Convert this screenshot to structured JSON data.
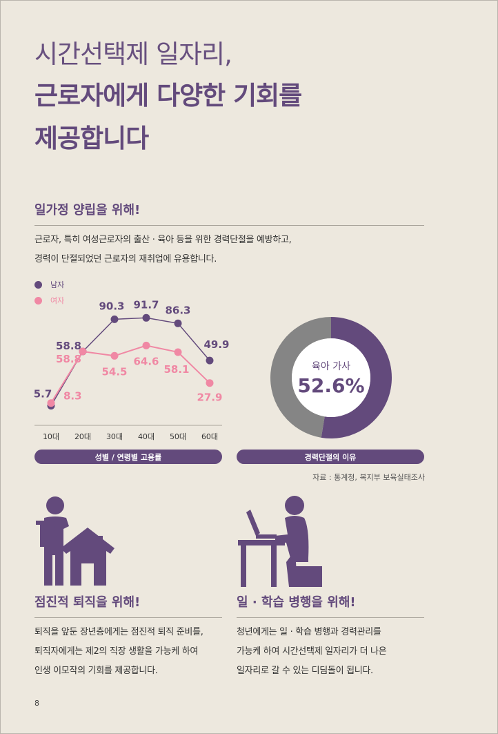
{
  "heading": {
    "line1": "시간선택제 일자리,",
    "line2": "근로자에게 다양한 기회를",
    "line3": "제공합니다"
  },
  "section1": {
    "title": "일가정 양립을 위해!",
    "body_line1": "근로자, 특히 여성근로자의 출산 · 육아 등을 위한 경력단절을 예방하고,",
    "body_line2": "경력이 단절되었던 근로자의 재취업에 유용합니다."
  },
  "chart_data": [
    {
      "type": "line",
      "categories": [
        "10대",
        "20대",
        "30대",
        "40대",
        "50대",
        "60대"
      ],
      "series": [
        {
          "name": "남자",
          "color": "#634a7c",
          "values": [
            5.7,
            58.8,
            90.3,
            91.7,
            86.3,
            49.9
          ]
        },
        {
          "name": "여자",
          "color": "#f088a4",
          "values": [
            8.3,
            58.8,
            54.5,
            64.6,
            58.1,
            27.9
          ]
        }
      ],
      "caption": "성별 / 연령별 고용률",
      "legend_position": "top-left",
      "grid": false
    },
    {
      "type": "pie",
      "style": "donut",
      "center_label": "육아 가사",
      "center_value": "52.6%",
      "slices": [
        {
          "label": "육아 가사",
          "value": 52.6,
          "color": "#634a7c"
        },
        {
          "label": "",
          "value": 47.4,
          "color": "#858585"
        }
      ],
      "caption": "경력단절의 이유"
    }
  ],
  "source": "자료 : 통계청, 복지부 보육실태조사",
  "section2": {
    "title": "점진적 퇴직을 위해!",
    "icon": "person-house-icon",
    "body_line1": "퇴직을 앞둔 장년층에게는 점진적 퇴직 준비를,",
    "body_line2": "퇴직자에게는 제2의 직장 생활을 가능케 하여",
    "body_line3": "인생 이모작의 기회를 제공합니다."
  },
  "section3": {
    "title": "일 · 학습 병행을 위해!",
    "icon": "person-laptop-icon",
    "body_line1": "청년에게는 일 · 학습 병행과 경력관리를",
    "body_line2": "가능케 하여 시간선택제 일자리가 더 나은",
    "body_line3": "일자리로 갈 수 있는 디딤돌이 됩니다."
  },
  "page_number": "8",
  "colors": {
    "background": "#ede8de",
    "purple": "#634a7c",
    "pink": "#f088a4",
    "gray": "#858585"
  }
}
